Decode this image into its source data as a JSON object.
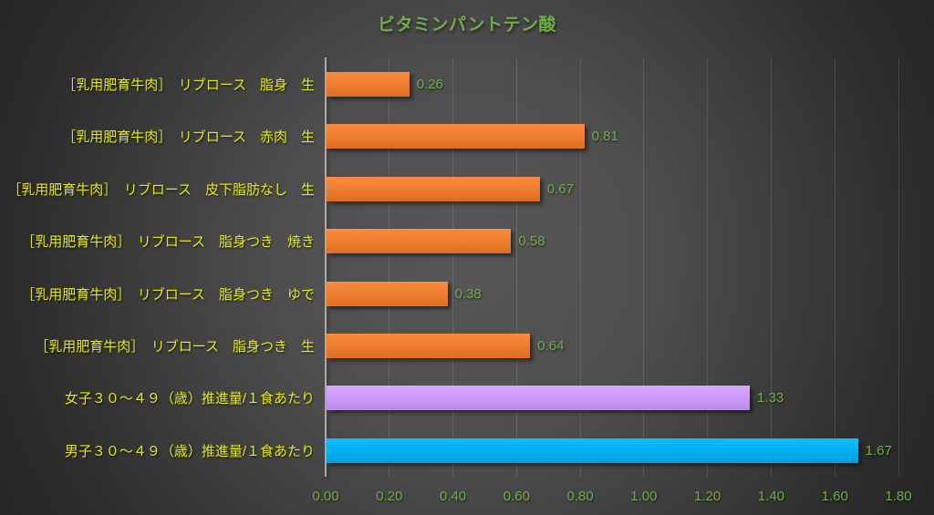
{
  "chart_data": {
    "type": "bar",
    "orientation": "horizontal",
    "title": "ビタミンパントテン酸",
    "categories": [
      "［乳用肥育牛肉］　リブロース　脂身　生",
      "［乳用肥育牛肉］　リブロース　赤肉　生",
      "［乳用肥育牛肉］　リブロース　皮下脂肪なし　生",
      "［乳用肥育牛肉］　リブロース　脂身つき　焼き",
      "［乳用肥育牛肉］　リブロース　脂身つき　ゆで",
      "［乳用肥育牛肉］　リブロース　脂身つき　生",
      "女子３０～４９（歳）推進量/１食あたり",
      "男子３０～４９（歳）推進量/１食あたり"
    ],
    "values": [
      0.26,
      0.81,
      0.67,
      0.58,
      0.38,
      0.64,
      1.33,
      1.67
    ],
    "data_labels": [
      "0.26",
      "0.81",
      "0.67",
      "0.58",
      "0.38",
      "0.64",
      "1.33",
      "1.67"
    ],
    "bar_colors": [
      "#ED7D31",
      "#ED7D31",
      "#ED7D31",
      "#ED7D31",
      "#ED7D31",
      "#ED7D31",
      "#CC99FA",
      "#00B0F0"
    ],
    "xlim": [
      0,
      1.8
    ],
    "xtick_step": 0.2,
    "xtick_labels": [
      "0.00",
      "0.20",
      "0.40",
      "0.60",
      "0.80",
      "1.00",
      "1.20",
      "1.40",
      "1.60",
      "1.80"
    ],
    "grid": "vertical-gridlines",
    "legend": "none",
    "xlabel": "",
    "ylabel": "",
    "colors": {
      "title_text": "#70AD47",
      "data_label_text": "#70AD47",
      "tick_label_text": "#70AD47",
      "category_label_text": "#E5E816",
      "axis_line": "#ACACAC",
      "background_center": "#585858",
      "background_edge": "#252525",
      "bar_orange": "#ED7D31",
      "bar_purple": "#CC99FA",
      "bar_blue": "#00B0F0"
    }
  }
}
